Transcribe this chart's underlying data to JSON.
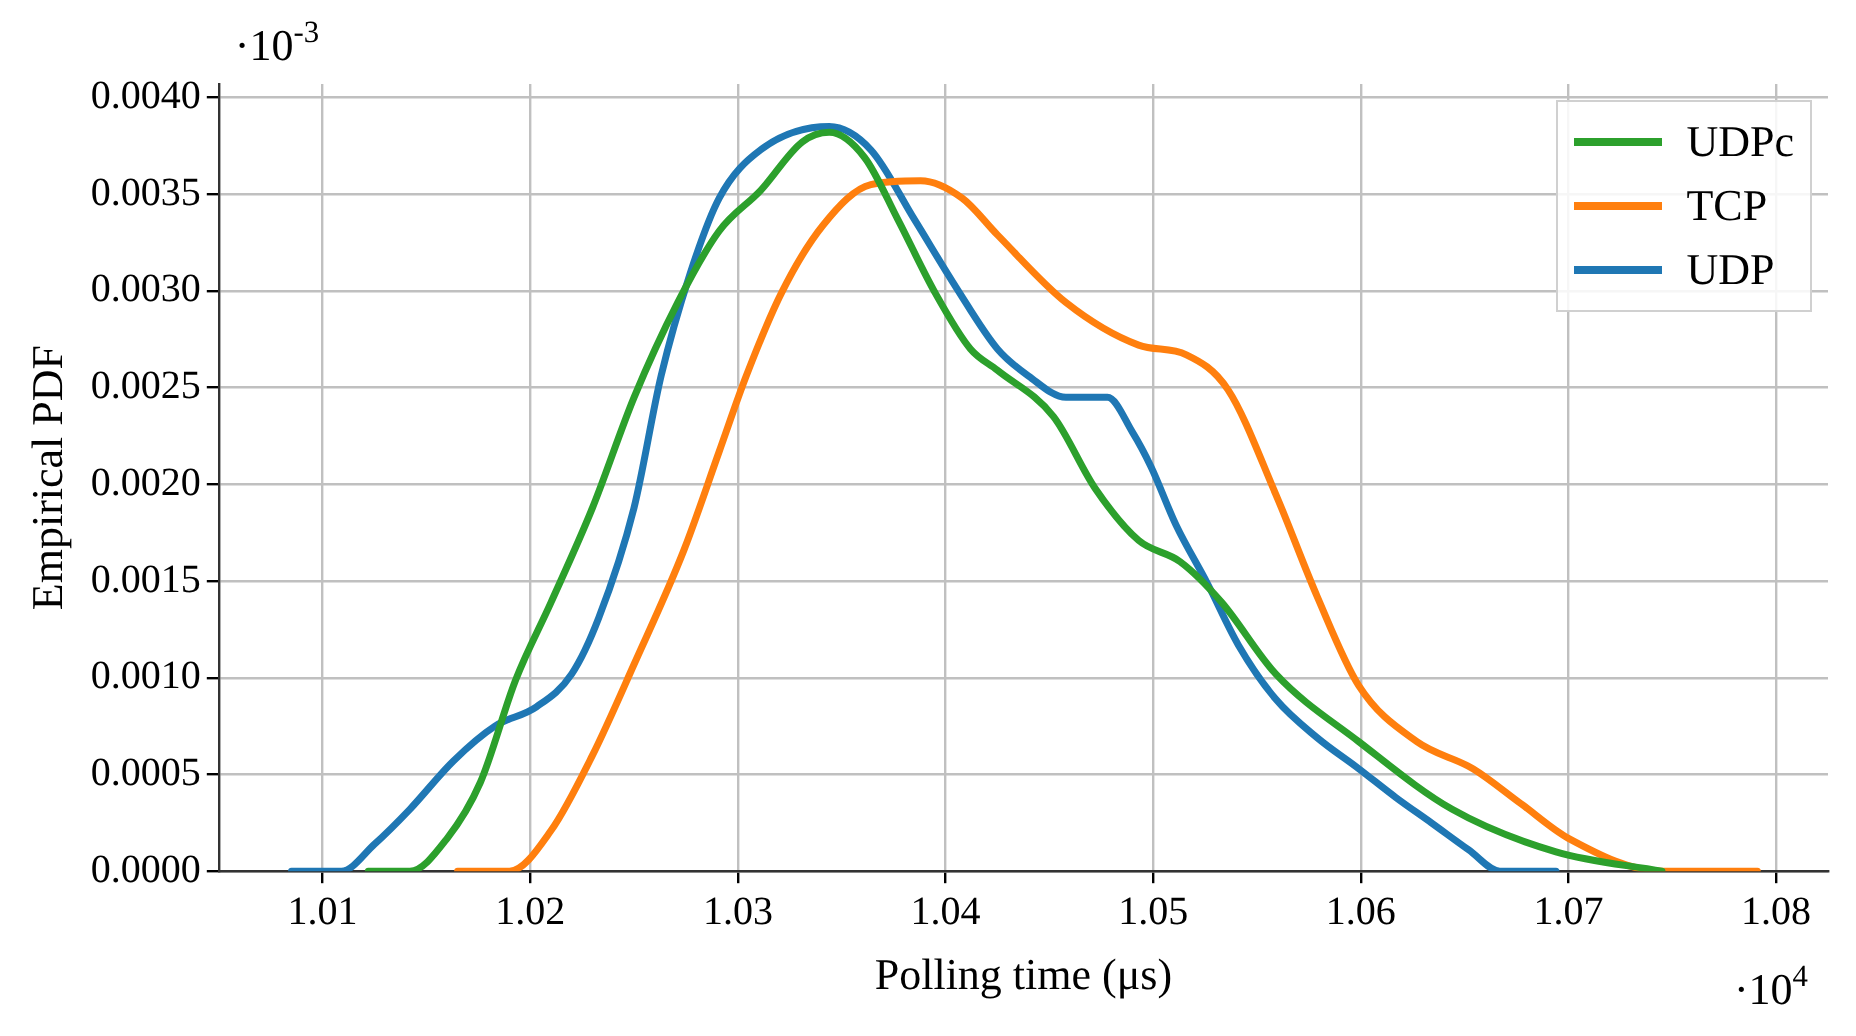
{
  "chart_data": {
    "type": "line",
    "xlabel": "Polling time (μs)",
    "ylabel": "Empirical PDF",
    "annotations": [
      "·10$^{-3}$",
      "·10$^{4}$"
    ],
    "xlim": [
      1.005,
      1.0825
    ],
    "xticks": [
      1.01,
      1.02,
      1.03,
      1.04,
      1.05,
      1.06,
      1.07,
      1.08
    ],
    "ylim": [
      0,
      0.00407
    ],
    "yticks": [
      {
        "value": 0,
        "label": "0.0000"
      },
      {
        "value": 0.0005,
        "label": "0.0005"
      },
      {
        "value": 0.001,
        "label": "0.0010"
      },
      {
        "value": 0.0015,
        "label": "0.0015"
      },
      {
        "value": 0.002,
        "label": "0.0020"
      },
      {
        "value": 0.0025,
        "label": "0.0025"
      },
      {
        "value": 0.003,
        "label": "0.0030"
      },
      {
        "value": 0.0035,
        "label": "0.0035"
      },
      {
        "value": 0.004,
        "label": "0.0040"
      }
    ],
    "grid": true,
    "legend": "top right",
    "marker": "none",
    "line_style": "solid",
    "series": [
      {
        "name": "UDPc",
        "color": "#2ca02c",
        "x": [
          1.0122,
          1.0142,
          1.016,
          1.0176,
          1.0193,
          1.021,
          1.023,
          1.025,
          1.0271,
          1.0291,
          1.0311,
          1.0331,
          1.0344,
          1.0361,
          1.0377,
          1.0395,
          1.0412,
          1.0425,
          1.0452,
          1.0472,
          1.0493,
          1.0513,
          1.0533,
          1.0559,
          1.0599,
          1.0644,
          1.0694,
          1.0745
        ],
        "values": [
          0,
          0,
          0.00017,
          0.00046,
          0.00099,
          0.00139,
          0.00188,
          0.00245,
          0.00294,
          0.00331,
          0.00352,
          0.00377,
          0.00382,
          0.00369,
          0.00337,
          0.00299,
          0.0027,
          0.00259,
          0.00235,
          0.00198,
          0.00171,
          0.0016,
          0.00139,
          0.00102,
          0.00067,
          0.00032,
          0.0001,
          0
        ]
      },
      {
        "name": "TCP",
        "color": "#ff7f0e",
        "x": [
          1.0165,
          1.019,
          1.021,
          1.023,
          1.025,
          1.0274,
          1.0291,
          1.0304,
          1.0321,
          1.0341,
          1.0364,
          1.0388,
          1.0408,
          1.0425,
          1.0458,
          1.0493,
          1.0516,
          1.0536,
          1.0559,
          1.0579,
          1.0599,
          1.0627,
          1.0654,
          1.0677,
          1.07,
          1.0745,
          1.0791
        ],
        "values": [
          0,
          0,
          0.00021,
          0.0006,
          0.00107,
          0.00166,
          0.00217,
          0.00256,
          0.00299,
          0.00334,
          0.00355,
          0.00357,
          0.00348,
          0.00329,
          0.00294,
          0.00272,
          0.00267,
          0.00249,
          0.00195,
          0.00142,
          0.00096,
          0.00067,
          0.00053,
          0.00035,
          0.00017,
          0,
          0
        ]
      },
      {
        "name": "UDP",
        "color": "#1f77b4",
        "x": [
          1.0085,
          1.0109,
          1.0125,
          1.0142,
          1.0163,
          1.0183,
          1.0203,
          1.022,
          1.0233,
          1.025,
          1.0263,
          1.0277,
          1.0291,
          1.0311,
          1.0344,
          1.0364,
          1.0385,
          1.0405,
          1.0425,
          1.044,
          1.0458,
          1.0478,
          1.049,
          1.0499,
          1.0511,
          1.0526,
          1.0541,
          1.0559,
          1.0579,
          1.0599,
          1.0617,
          1.0634,
          1.0652,
          1.0667,
          1.0694
        ],
        "values": [
          0,
          0,
          0.00014,
          0.00032,
          0.00057,
          0.00075,
          0.00085,
          0.00102,
          0.00131,
          0.00188,
          0.00256,
          0.00309,
          0.00348,
          0.00373,
          0.00385,
          0.00373,
          0.00337,
          0.00302,
          0.0027,
          0.00256,
          0.00245,
          0.00245,
          0.00227,
          0.00209,
          0.00179,
          0.00149,
          0.00117,
          0.00089,
          0.00069,
          0.00053,
          0.00038,
          0.00025,
          0.00011,
          0,
          0
        ]
      }
    ]
  }
}
